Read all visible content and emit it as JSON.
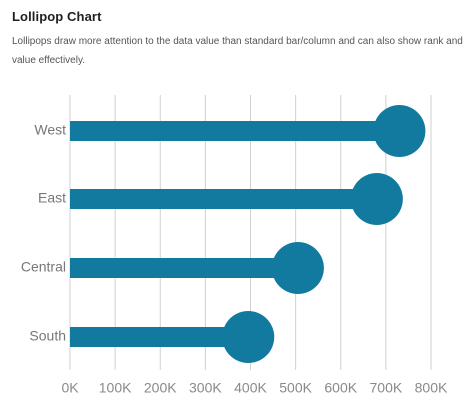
{
  "header": {
    "title": "Lollipop Chart",
    "description": "Lollipops draw more attention to the data value than standard bar/column and can also show rank and value effectively."
  },
  "chart_data": {
    "type": "bar",
    "variant": "lollipop",
    "orientation": "horizontal",
    "title": "Lollipop Chart",
    "categories": [
      "West",
      "East",
      "Central",
      "South"
    ],
    "values": [
      730000,
      680000,
      505000,
      395000
    ],
    "xlim": [
      0,
      800000
    ],
    "x_ticks": [
      0,
      100000,
      200000,
      300000,
      400000,
      500000,
      600000,
      700000,
      800000
    ],
    "x_tick_labels": [
      "0K",
      "100K",
      "200K",
      "300K",
      "400K",
      "500K",
      "600K",
      "700K",
      "800K"
    ],
    "grid": "vertical",
    "color": "#137a9f",
    "gridline_color": "#d0d0d0",
    "label_color": "#808080"
  }
}
